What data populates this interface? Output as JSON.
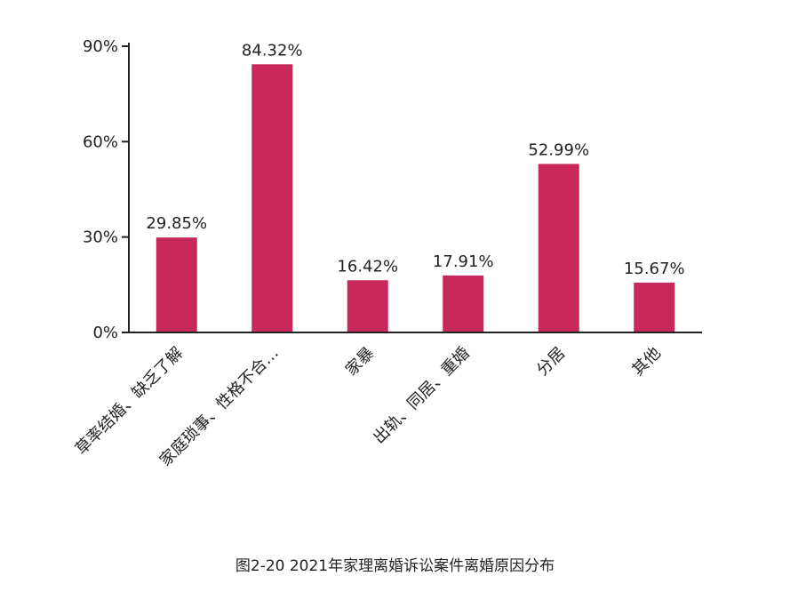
{
  "chart_data": {
    "type": "bar",
    "categories": [
      "草率结婚、缺乏了解",
      "家庭琐事、性格不合…",
      "家暴",
      "出轨、同居、重婚",
      "分居",
      "其他"
    ],
    "values": [
      29.85,
      84.32,
      16.42,
      17.91,
      52.99,
      15.67
    ],
    "value_labels": [
      "29.85%",
      "84.32%",
      "16.42%",
      "17.91%",
      "52.99%",
      "15.67%"
    ],
    "yticks": [
      0,
      30,
      60,
      90
    ],
    "ytick_labels": [
      "0%",
      "30%",
      "60%",
      "90%"
    ],
    "ylim": [
      0,
      90
    ],
    "bar_color": "#c8285a",
    "axis_color": "#222222",
    "grid": false,
    "caption": "图2-20  2021年家理离婚诉讼案件离婚原因分布"
  }
}
